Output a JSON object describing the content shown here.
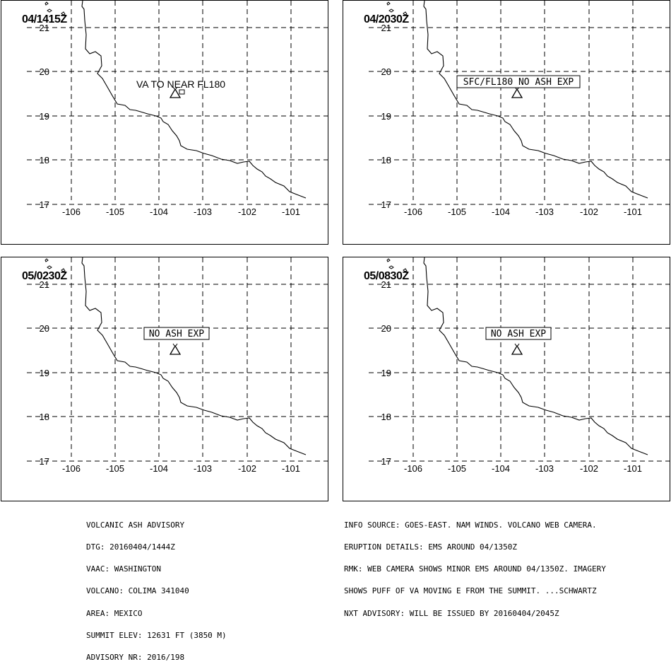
{
  "panels": [
    {
      "time": "04/1415Z",
      "label": "VA TO NEAR FL180",
      "boxed": false,
      "volcano_icon": "volcano-triangle-icon"
    },
    {
      "time": "04/2030Z",
      "label": "SFC/FL180 NO ASH EXP",
      "boxed": true,
      "volcano_icon": "volcano-triangle-icon"
    },
    {
      "time": "05/0230Z",
      "label": "NO ASH EXP",
      "boxed": true,
      "volcano_icon": "volcano-triangle-icon"
    },
    {
      "time": "05/0830Z",
      "label": "NO ASH EXP",
      "boxed": true,
      "volcano_icon": "volcano-triangle-icon"
    }
  ],
  "axes": {
    "lat_ticks": [
      "17",
      "18",
      "19",
      "20",
      "21"
    ],
    "lon_ticks": [
      "-106",
      "-105",
      "-104",
      "-103",
      "-102",
      "-101"
    ]
  },
  "advisory": {
    "line1": "VOLCANIC ASH ADVISORY",
    "line2": "DTG: 20160404/1444Z",
    "line3": "VAAC: WASHINGTON",
    "line4": "VOLCANO: COLIMA 341040",
    "line5": "AREA: MEXICO",
    "line6": "SUMMIT ELEV: 12631 FT (3850 M)",
    "line7": "ADVISORY NR: 2016/198"
  },
  "details": {
    "line1": "INFO SOURCE: GOES-EAST. NAM WINDS. VOLCANO WEB CAMERA.",
    "line2": "ERUPTION DETAILS: EMS AROUND 04/1350Z",
    "line3": "RMK: WEB CAMERA SHOWS MINOR EMS AROUND 04/1350Z. IMAGERY",
    "line4": "SHOWS PUFF OF VA MOVING E FROM THE SUMMIT. ...SCHWARTZ",
    "line5": "NXT ADVISORY: WILL BE ISSUED BY 20160404/2045Z"
  }
}
